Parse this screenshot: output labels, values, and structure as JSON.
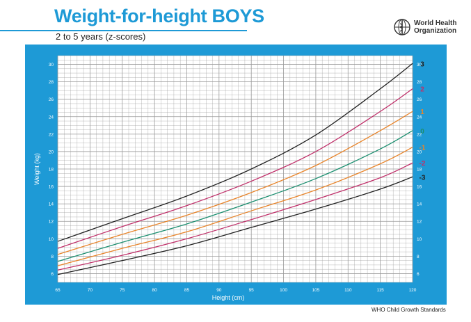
{
  "header": {
    "title": "Weight-for-height BOYS",
    "subtitle": "2 to 5 years (z-scores)",
    "org_line1": "World Health",
    "org_line2": "Organization"
  },
  "footer": {
    "text": "WHO Child Growth Standards"
  },
  "colors": {
    "panel": "#1e9ad6",
    "grid": "#9a9a9a",
    "z3": "#222222",
    "z2": "#c0306a",
    "z1": "#e8842a",
    "z0": "#1c8f70",
    "zn1": "#e8842a",
    "zn2": "#c0306a",
    "zn3": "#222222"
  },
  "chart_data": {
    "type": "line",
    "xlabel": "Height (cm)",
    "ylabel": "Weight (kg)",
    "xlim": [
      65,
      120
    ],
    "ylim": [
      5,
      31
    ],
    "x_ticks": [
      65,
      70,
      75,
      80,
      85,
      90,
      95,
      100,
      105,
      110,
      115,
      120
    ],
    "y_ticks": [
      6,
      8,
      10,
      12,
      14,
      16,
      18,
      20,
      22,
      24,
      26,
      28,
      30
    ],
    "grid": true,
    "x": [
      65,
      75,
      85,
      95,
      105,
      115,
      120
    ],
    "series": [
      {
        "name": "3",
        "color_key": "z3",
        "values": [
          9.7,
          12.3,
          14.9,
          18.0,
          21.9,
          27.2,
          30.1
        ]
      },
      {
        "name": "2",
        "color_key": "z2",
        "values": [
          8.9,
          11.4,
          13.8,
          16.6,
          20.0,
          24.6,
          27.2
        ]
      },
      {
        "name": "1",
        "color_key": "z1",
        "values": [
          8.2,
          10.5,
          12.7,
          15.3,
          18.4,
          22.4,
          24.6
        ]
      },
      {
        "name": "0",
        "color_key": "z0",
        "values": [
          7.4,
          9.6,
          11.7,
          14.2,
          16.9,
          20.3,
          22.4
        ]
      },
      {
        "name": "-1",
        "color_key": "zn1",
        "values": [
          6.9,
          8.9,
          10.8,
          13.2,
          15.6,
          18.6,
          20.5
        ]
      },
      {
        "name": "-2",
        "color_key": "zn2",
        "values": [
          6.4,
          8.1,
          10.0,
          12.2,
          14.5,
          17.0,
          18.7
        ]
      },
      {
        "name": "-3",
        "color_key": "zn3",
        "values": [
          5.9,
          7.5,
          9.2,
          11.3,
          13.4,
          15.7,
          17.1
        ]
      }
    ]
  }
}
